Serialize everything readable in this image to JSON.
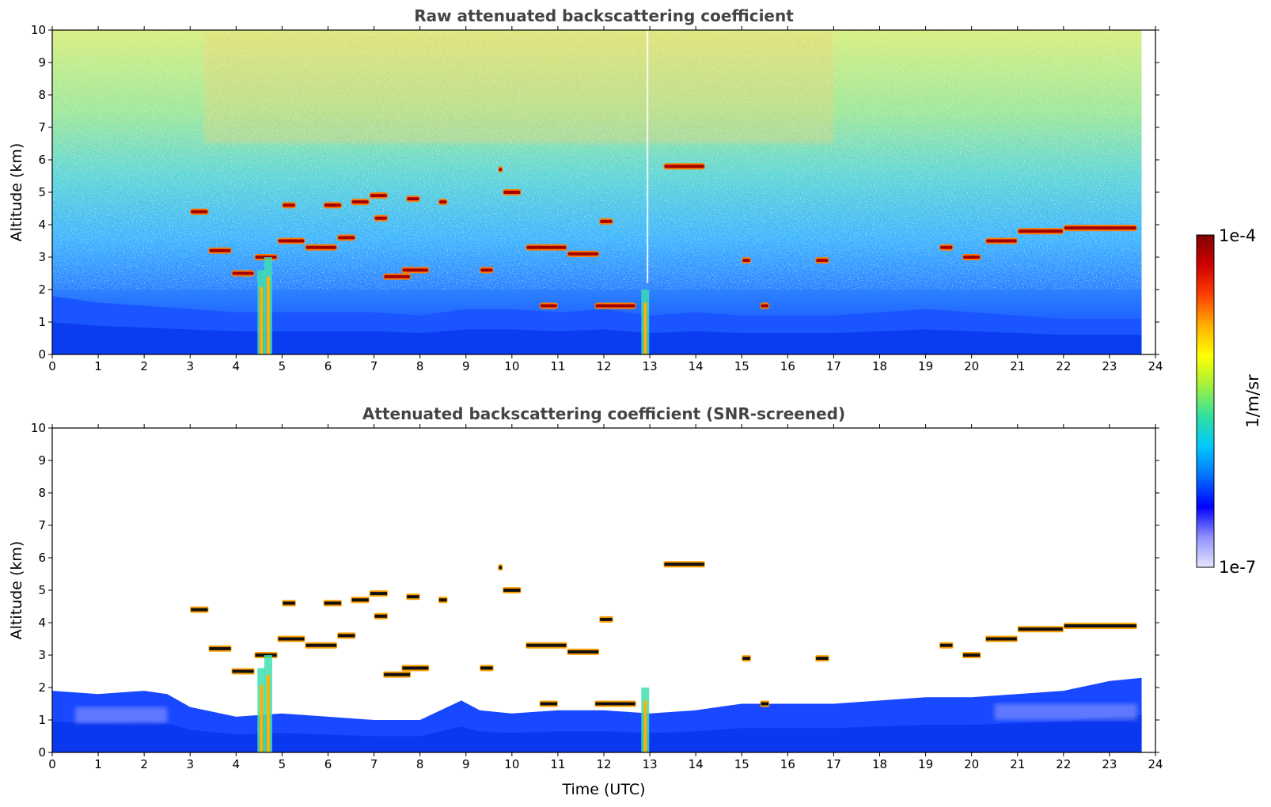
{
  "chart_data": [
    {
      "type": "heatmap",
      "title": "Raw attenuated backscattering coefficient",
      "xlabel": "",
      "ylabel": "Altitude (km)",
      "xlim": [
        0,
        24
      ],
      "ylim": [
        0,
        10
      ],
      "xticks": [
        "0",
        "1",
        "2",
        "3",
        "4",
        "5",
        "6",
        "7",
        "8",
        "9",
        "10",
        "11",
        "12",
        "13",
        "14",
        "15",
        "16",
        "17",
        "18",
        "19",
        "20",
        "21",
        "22",
        "23",
        "24"
      ],
      "yticks": [
        "0",
        "1",
        "2",
        "3",
        "4",
        "5",
        "6",
        "7",
        "8",
        "9",
        "10"
      ],
      "data_end_time": 23.7,
      "boundary_layer_top_km": [
        [
          0,
          1.8
        ],
        [
          1,
          1.6
        ],
        [
          2,
          1.5
        ],
        [
          3,
          1.4
        ],
        [
          4,
          1.3
        ],
        [
          5,
          1.3
        ],
        [
          6,
          1.3
        ],
        [
          7,
          1.3
        ],
        [
          8,
          1.2
        ],
        [
          9,
          1.4
        ],
        [
          10,
          1.4
        ],
        [
          11,
          1.3
        ],
        [
          12,
          1.4
        ],
        [
          13,
          1.2
        ],
        [
          14,
          1.3
        ],
        [
          15,
          1.2
        ],
        [
          16,
          1.2
        ],
        [
          17,
          1.2
        ],
        [
          18,
          1.3
        ],
        [
          19,
          1.4
        ],
        [
          20,
          1.3
        ],
        [
          21,
          1.2
        ],
        [
          22,
          1.1
        ],
        [
          23,
          1.1
        ],
        [
          23.7,
          1.1
        ]
      ],
      "cloud_layers": [
        {
          "t0": 3.0,
          "t1": 3.4,
          "alt": 4.4
        },
        {
          "t0": 3.4,
          "t1": 3.9,
          "alt": 3.2
        },
        {
          "t0": 3.9,
          "t1": 4.4,
          "alt": 2.5
        },
        {
          "t0": 4.4,
          "t1": 4.9,
          "alt": 3.0
        },
        {
          "t0": 4.9,
          "t1": 5.5,
          "alt": 3.5
        },
        {
          "t0": 5.0,
          "t1": 5.3,
          "alt": 4.6
        },
        {
          "t0": 5.5,
          "t1": 6.2,
          "alt": 3.3
        },
        {
          "t0": 5.9,
          "t1": 6.3,
          "alt": 4.6
        },
        {
          "t0": 6.2,
          "t1": 6.6,
          "alt": 3.6
        },
        {
          "t0": 6.5,
          "t1": 6.9,
          "alt": 4.7
        },
        {
          "t0": 6.9,
          "t1": 7.3,
          "alt": 4.9
        },
        {
          "t0": 7.0,
          "t1": 7.3,
          "alt": 4.2
        },
        {
          "t0": 7.2,
          "t1": 7.8,
          "alt": 2.4
        },
        {
          "t0": 7.6,
          "t1": 8.2,
          "alt": 2.6
        },
        {
          "t0": 7.7,
          "t1": 8.0,
          "alt": 4.8
        },
        {
          "t0": 8.4,
          "t1": 8.6,
          "alt": 4.7
        },
        {
          "t0": 9.3,
          "t1": 9.6,
          "alt": 2.6
        },
        {
          "t0": 9.7,
          "t1": 9.8,
          "alt": 5.7
        },
        {
          "t0": 9.8,
          "t1": 10.2,
          "alt": 5.0
        },
        {
          "t0": 10.3,
          "t1": 11.2,
          "alt": 3.3
        },
        {
          "t0": 11.2,
          "t1": 11.9,
          "alt": 3.1
        },
        {
          "t0": 10.6,
          "t1": 11.0,
          "alt": 1.5
        },
        {
          "t0": 11.9,
          "t1": 12.2,
          "alt": 4.1
        },
        {
          "t0": 11.8,
          "t1": 12.7,
          "alt": 1.5
        },
        {
          "t0": 13.3,
          "t1": 14.2,
          "alt": 5.8
        },
        {
          "t0": 15.0,
          "t1": 15.2,
          "alt": 2.9
        },
        {
          "t0": 15.4,
          "t1": 15.6,
          "alt": 1.5
        },
        {
          "t0": 16.6,
          "t1": 16.9,
          "alt": 2.9
        },
        {
          "t0": 19.3,
          "t1": 19.6,
          "alt": 3.3
        },
        {
          "t0": 19.8,
          "t1": 20.2,
          "alt": 3.0
        },
        {
          "t0": 20.3,
          "t1": 21.0,
          "alt": 3.5
        },
        {
          "t0": 21.0,
          "t1": 22.0,
          "alt": 3.8
        },
        {
          "t0": 22.0,
          "t1": 23.6,
          "alt": 3.9
        }
      ],
      "aerosol_plumes": [
        {
          "time": 4.55,
          "top_km": 2.6
        },
        {
          "time": 4.7,
          "top_km": 3.0
        },
        {
          "time": 12.9,
          "top_km": 2.0
        }
      ]
    },
    {
      "type": "heatmap",
      "title": "Attenuated backscattering coefficient (SNR-screened)",
      "xlabel": "Time (UTC)",
      "ylabel": "Altitude (km)",
      "xlim": [
        0,
        24
      ],
      "ylim": [
        0,
        10
      ],
      "xticks": [
        "0",
        "1",
        "2",
        "3",
        "4",
        "5",
        "6",
        "7",
        "8",
        "9",
        "10",
        "11",
        "12",
        "13",
        "14",
        "15",
        "16",
        "17",
        "18",
        "19",
        "20",
        "21",
        "22",
        "23",
        "24"
      ],
      "yticks": [
        "0",
        "1",
        "2",
        "3",
        "4",
        "5",
        "6",
        "7",
        "8",
        "9",
        "10"
      ],
      "data_end_time": 23.7,
      "screened_top_km": [
        [
          0,
          1.9
        ],
        [
          1,
          1.8
        ],
        [
          2,
          1.9
        ],
        [
          2.5,
          1.8
        ],
        [
          3,
          1.4
        ],
        [
          4,
          1.1
        ],
        [
          5,
          1.2
        ],
        [
          6,
          1.1
        ],
        [
          7,
          1.0
        ],
        [
          8,
          1.0
        ],
        [
          8.9,
          1.6
        ],
        [
          9.3,
          1.3
        ],
        [
          10,
          1.2
        ],
        [
          11,
          1.3
        ],
        [
          12,
          1.3
        ],
        [
          13,
          1.2
        ],
        [
          14,
          1.3
        ],
        [
          15,
          1.5
        ],
        [
          16,
          1.5
        ],
        [
          17,
          1.5
        ],
        [
          18,
          1.6
        ],
        [
          19,
          1.7
        ],
        [
          20,
          1.7
        ],
        [
          21,
          1.8
        ],
        [
          22,
          1.9
        ],
        [
          23,
          2.2
        ],
        [
          23.7,
          2.3
        ]
      ]
    }
  ],
  "colorbar": {
    "label": "1/m/sr",
    "max_label": "1e-4",
    "min_label": "1e-7"
  },
  "colors": {
    "background": "#ffffff",
    "title": "#444444",
    "colormap": [
      "#e6e6ff",
      "#9090ff",
      "#0000ff",
      "#0070ff",
      "#00c8ff",
      "#30e0a0",
      "#a0f040",
      "#ffff00",
      "#ffb000",
      "#ff4000",
      "#d00000",
      "#800000"
    ]
  }
}
